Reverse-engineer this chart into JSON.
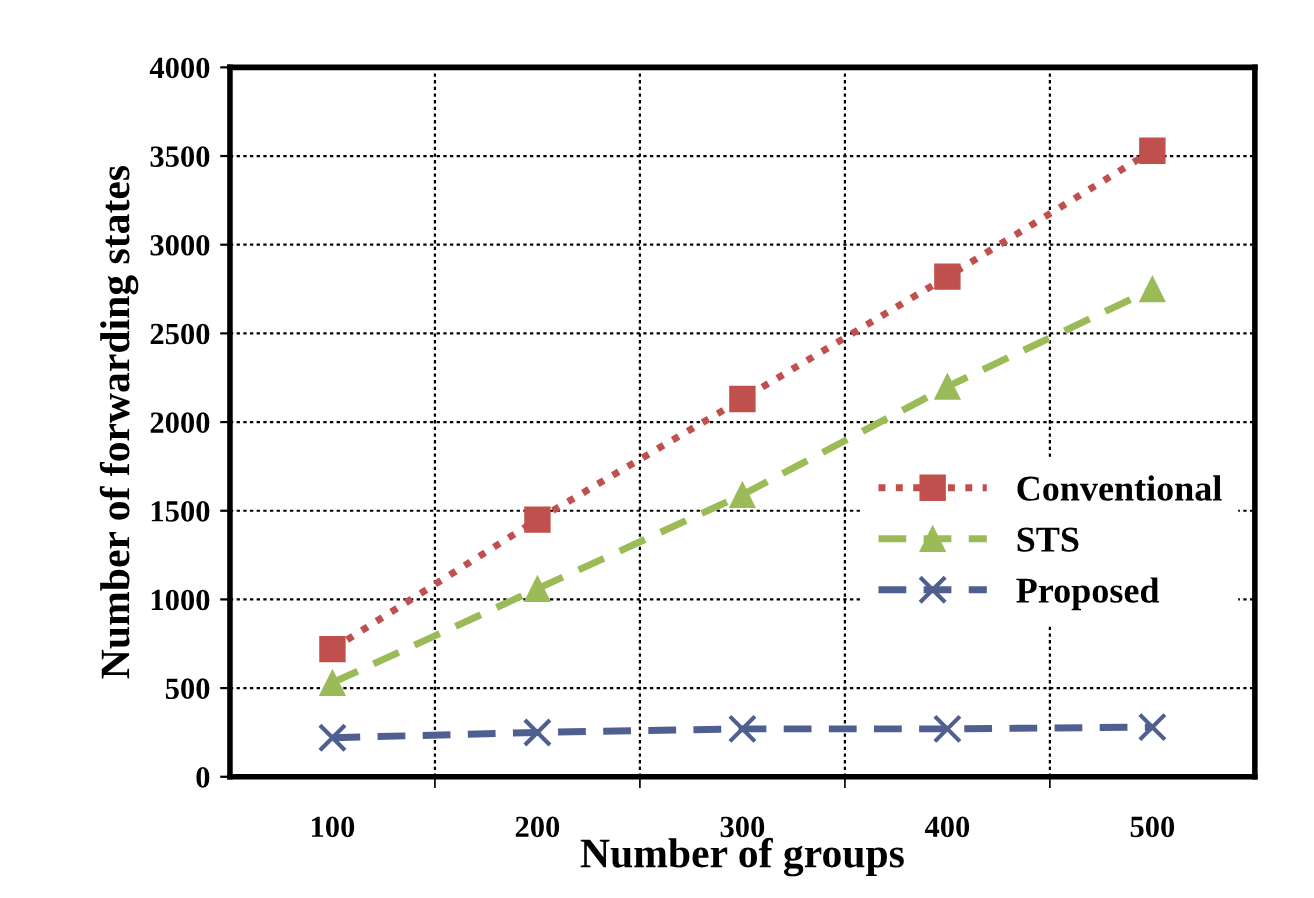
{
  "chart_data": {
    "type": "line",
    "xlabel": "Number of groups",
    "ylabel": "Number of forwarding states",
    "categories": [
      "100",
      "200",
      "300",
      "400",
      "500"
    ],
    "series": [
      {
        "name": "Conventional",
        "color": "#c0504d",
        "values": [
          720,
          1450,
          2130,
          2820,
          3530
        ],
        "marker": "square",
        "line_style": "dotted"
      },
      {
        "name": "STS",
        "color": "#9bbb59",
        "values": [
          530,
          1060,
          1590,
          2200,
          2750
        ],
        "marker": "triangle",
        "line_style": "dashed"
      },
      {
        "name": "Proposed",
        "color": "#4f5f8f",
        "values": [
          220,
          250,
          270,
          270,
          280
        ],
        "marker": "cross",
        "line_style": "dashed"
      }
    ],
    "ylim": [
      0,
      4000
    ],
    "yticks": [
      0,
      500,
      1000,
      1500,
      2000,
      2500,
      3000,
      3500,
      4000
    ],
    "grid": true,
    "legend": "right"
  }
}
